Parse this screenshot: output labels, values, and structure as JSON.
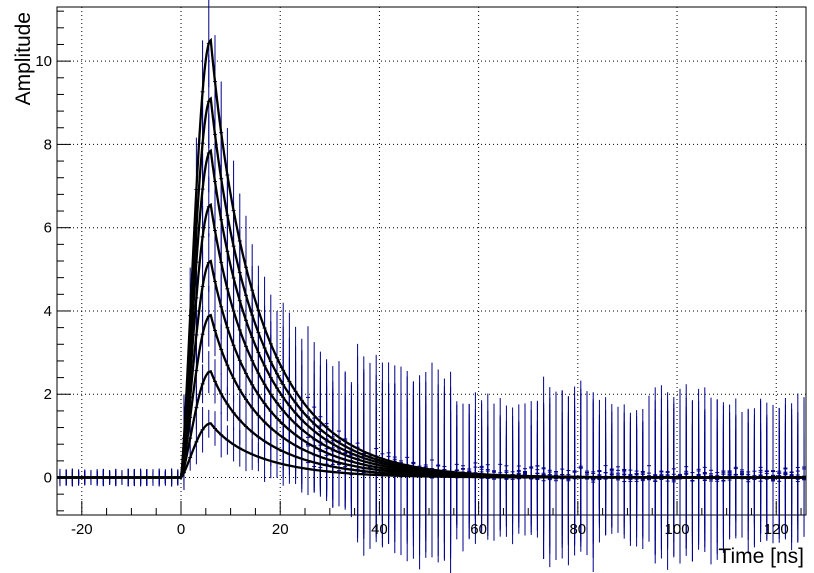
{
  "chart_data": {
    "type": "line",
    "title": "",
    "xlabel": "Time [ns]",
    "ylabel": "Amplitude",
    "xlim": [
      -25,
      126
    ],
    "ylim": [
      -0.9,
      11.3
    ],
    "x_ticks": [
      -20,
      0,
      20,
      40,
      60,
      80,
      100,
      120
    ],
    "x_tick_labels": [
      "-20",
      "0",
      "20",
      "40",
      "60",
      "80",
      "100",
      "120"
    ],
    "y_ticks": [
      0,
      2,
      4,
      6,
      8,
      10
    ],
    "y_tick_labels": [
      "0",
      "2",
      "4",
      "6",
      "8",
      "10"
    ],
    "grid": true,
    "pulse_shape": {
      "onset_x": 0,
      "peak_x": 6,
      "decay_time": 11.5
    },
    "series": [
      {
        "peak": 1.3,
        "color": "#000000"
      },
      {
        "peak": 2.55,
        "color": "#000000"
      },
      {
        "peak": 3.9,
        "color": "#000000"
      },
      {
        "peak": 5.2,
        "color": "#000000"
      },
      {
        "peak": 6.55,
        "color": "#000000"
      },
      {
        "peak": 7.85,
        "color": "#000000"
      },
      {
        "peak": 9.1,
        "color": "#000000"
      },
      {
        "peak": 10.5,
        "color": "#000000"
      }
    ],
    "error_bar_color": "#00008b",
    "baseline": 0,
    "legend": "none"
  }
}
